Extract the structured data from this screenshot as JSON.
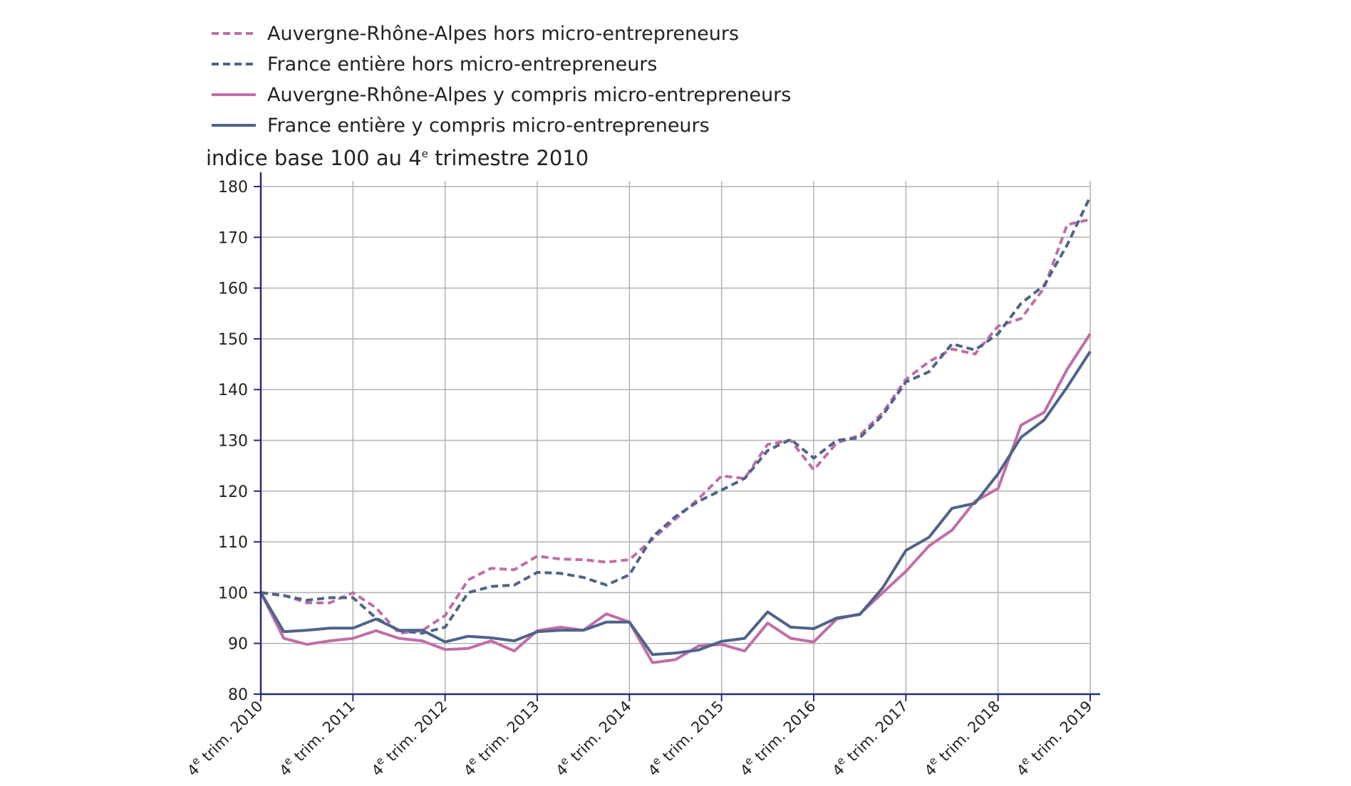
{
  "chart_data": {
    "type": "line",
    "ylabel": {
      "prefix": "indice base 100 au 4",
      "sup": "e",
      "suffix": " trimestre 2010"
    },
    "ylim": [
      80,
      180
    ],
    "yticks": [
      80,
      90,
      100,
      110,
      120,
      130,
      140,
      150,
      160,
      170,
      180
    ],
    "grid": true,
    "legend_position": "top-left",
    "x_labels": [
      {
        "pre": "4",
        "sup": "e",
        "post": " trim. 2010"
      },
      {
        "pre": "4",
        "sup": "e",
        "post": " trim. 2011"
      },
      {
        "pre": "4",
        "sup": "e",
        "post": " trim. 2012"
      },
      {
        "pre": "4",
        "sup": "e",
        "post": " trim. 2013"
      },
      {
        "pre": "4",
        "sup": "e",
        "post": " trim. 2014"
      },
      {
        "pre": "4",
        "sup": "e",
        "post": " trim. 2015"
      },
      {
        "pre": "4",
        "sup": "e",
        "post": " trim. 2016"
      },
      {
        "pre": "4",
        "sup": "e",
        "post": " trim. 2017"
      },
      {
        "pre": "4",
        "sup": "e",
        "post": " trim. 2018"
      },
      {
        "pre": "4",
        "sup": "e",
        "post": " trim. 2019"
      }
    ],
    "series": [
      {
        "name": "Auvergne-Rhône-Alpes hors micro-entrepreneurs",
        "color": "#c06ea8",
        "dashed": true,
        "values": [
          100,
          99.5,
          98,
          98,
          100,
          97,
          92,
          92.5,
          95.5,
          102.5,
          104.8,
          104.5,
          107.2,
          106.6,
          106.5,
          106,
          106.5,
          110.5,
          114.5,
          118.5,
          123,
          122.5,
          129.2,
          130,
          124.2,
          129.5,
          131,
          135.5,
          142,
          145.5,
          148,
          147,
          152.5,
          154,
          160,
          172.5,
          173.5
        ]
      },
      {
        "name": "France entière hors micro-entrepreneurs",
        "color": "#4e6489",
        "dashed": true,
        "values": [
          100,
          99.4,
          98.5,
          99,
          99,
          95,
          92.5,
          92,
          93.2,
          100,
          101.2,
          101.5,
          104,
          103.8,
          103,
          101.5,
          103.5,
          111,
          115,
          118,
          120.2,
          122.5,
          128,
          130.2,
          126.5,
          130,
          130.5,
          135,
          141.5,
          143.5,
          149,
          147.8,
          151,
          157,
          160.5,
          168.5,
          178
        ]
      },
      {
        "name": "Auvergne-Rhône-Alpes y compris micro-entrepreneurs",
        "color": "#c06ea8",
        "dashed": false,
        "values": [
          100,
          91,
          89.8,
          90.5,
          91,
          92.5,
          91,
          90.5,
          88.8,
          89,
          90.5,
          88.5,
          92.5,
          93.2,
          92.6,
          95.8,
          94.2,
          86.2,
          86.8,
          89.5,
          89.8,
          88.5,
          94,
          91,
          90.3,
          94.8,
          95.8,
          100,
          104.2,
          109.2,
          112.3,
          118,
          120.5,
          133,
          135.5,
          144,
          151
        ]
      },
      {
        "name": "France entière y compris micro-entrepreneurs",
        "color": "#4e6489",
        "dashed": false,
        "values": [
          100,
          92.3,
          92.6,
          93,
          93,
          94.8,
          92.6,
          92.6,
          90.3,
          91.4,
          91.1,
          90.5,
          92.3,
          92.6,
          92.6,
          94.2,
          94.2,
          87.8,
          88.1,
          88.7,
          90.4,
          91,
          96.2,
          93.2,
          92.9,
          95,
          95.7,
          101,
          108.3,
          110.9,
          116.6,
          117.6,
          123.4,
          130.6,
          134,
          140.5,
          147.5
        ]
      }
    ]
  }
}
